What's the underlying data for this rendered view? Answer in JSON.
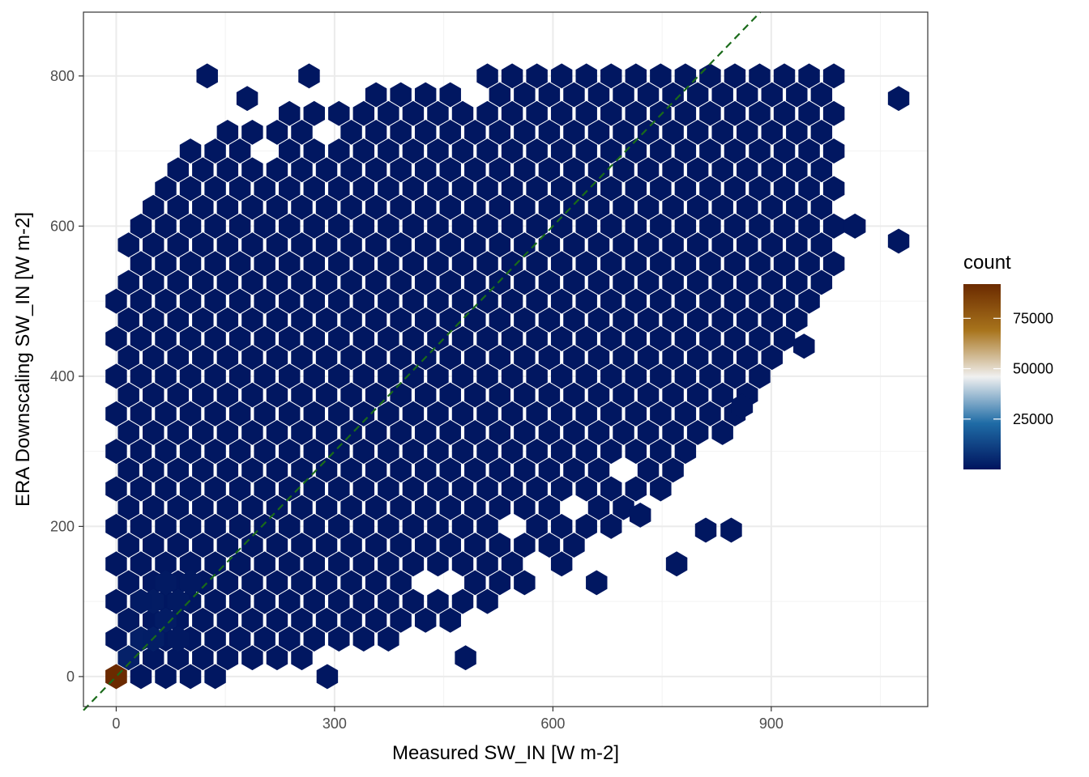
{
  "chart_data": {
    "type": "heatmap",
    "subtype": "hexbin",
    "title": "",
    "xlabel": "Measured SW_IN [W m-2]",
    "ylabel": "ERA Downscaling SW_IN [W m-2]",
    "xlim": [
      -45,
      1115
    ],
    "ylim": [
      -40,
      885
    ],
    "x_ticks": [
      0,
      300,
      600,
      900
    ],
    "x_tick_labels": [
      "0",
      "300",
      "600",
      "900"
    ],
    "y_ticks": [
      0,
      200,
      400,
      600,
      800
    ],
    "y_tick_labels": [
      "0",
      "200",
      "400",
      "600",
      "800"
    ],
    "grid": true,
    "hex_width": 34,
    "reference_line": {
      "type": "identity",
      "slope": 1,
      "intercept": 0,
      "style": "dashed",
      "color": "#1a6b1a"
    },
    "legend": {
      "title": "count",
      "placement": "right",
      "breaks": [
        25000,
        50000,
        75000
      ],
      "break_labels": [
        "25000",
        "50000",
        "75000"
      ],
      "range": [
        1,
        92000
      ],
      "colors": [
        "#00145e",
        "#1f6ca6",
        "#f0f0f0",
        "#a8741c",
        "#6b2a00"
      ]
    },
    "cloud": {
      "value": 800,
      "lower_boundary": [
        [
          0,
          0
        ],
        [
          150,
          0
        ],
        [
          450,
          60
        ],
        [
          700,
          200
        ],
        [
          850,
          340
        ],
        [
          1000,
          520
        ],
        [
          1000,
          720
        ],
        [
          1000,
          820
        ]
      ],
      "upper_boundary": [
        [
          0,
          580
        ],
        [
          70,
          680
        ],
        [
          130,
          730
        ],
        [
          300,
          770
        ],
        [
          500,
          800
        ],
        [
          700,
          800
        ],
        [
          850,
          810
        ],
        [
          1000,
          820
        ]
      ],
      "holes": [
        [
          480,
          770
        ],
        [
          290,
          720
        ],
        [
          190,
          690
        ],
        [
          1005,
          720
        ],
        [
          15,
          560
        ],
        [
          690,
          270
        ],
        [
          640,
          220
        ],
        [
          530,
          190
        ],
        [
          580,
          140
        ],
        [
          475,
          130
        ],
        [
          440,
          130
        ]
      ],
      "outliers": [
        [
          125,
          800
        ],
        [
          180,
          770
        ],
        [
          265,
          800
        ],
        [
          1075,
          770
        ],
        [
          1075,
          580
        ],
        [
          1015,
          600
        ],
        [
          770,
          150
        ],
        [
          660,
          125
        ],
        [
          480,
          25
        ],
        [
          290,
          0
        ],
        [
          860,
          360
        ],
        [
          810,
          195
        ],
        [
          845,
          195
        ],
        [
          945,
          440
        ],
        [
          720,
          215
        ]
      ]
    },
    "hot_bins": [
      {
        "x": 0,
        "y": 0,
        "count": 92000
      },
      {
        "x": 17,
        "y": 25,
        "count": 3500
      },
      {
        "x": 34,
        "y": 50,
        "count": 3000
      },
      {
        "x": 51,
        "y": 50,
        "count": 2500
      },
      {
        "x": 68,
        "y": 75,
        "count": 2200
      },
      {
        "x": 51,
        "y": 100,
        "count": 2000
      },
      {
        "x": 34,
        "y": 100,
        "count": 1800
      },
      {
        "x": 85,
        "y": 100,
        "count": 1500
      },
      {
        "x": 68,
        "y": 125,
        "count": 1500
      },
      {
        "x": 102,
        "y": 125,
        "count": 1200
      },
      {
        "x": 85,
        "y": 50,
        "count": 1400
      },
      {
        "x": 17,
        "y": 75,
        "count": 1400
      }
    ]
  }
}
